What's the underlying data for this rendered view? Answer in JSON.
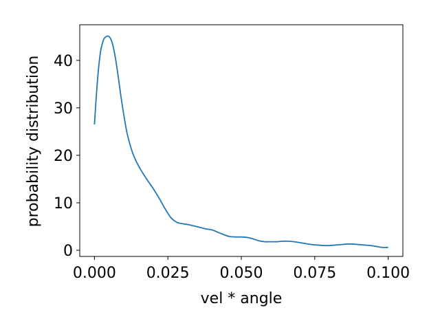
{
  "chart_data": {
    "type": "line",
    "title": "",
    "xlabel": "vel * angle",
    "ylabel": "probability distribution",
    "xlim": [
      -0.005,
      0.105
    ],
    "ylim": [
      -1.3,
      47.5
    ],
    "grid": false,
    "legend": "none",
    "line_color": "#1f77b4",
    "xticks": [
      0.0,
      0.025,
      0.05,
      0.075,
      0.1
    ],
    "xtick_labels": [
      "0.000",
      "0.025",
      "0.050",
      "0.075",
      "0.100"
    ],
    "yticks": [
      0,
      10,
      20,
      30,
      40
    ],
    "ytick_labels": [
      "0",
      "10",
      "20",
      "30",
      "40"
    ],
    "series": [
      {
        "x": [
          0.0,
          0.001,
          0.002,
          0.003,
          0.004,
          0.005,
          0.006,
          0.007,
          0.008,
          0.009,
          0.01,
          0.011,
          0.012,
          0.013,
          0.014,
          0.015,
          0.016,
          0.018,
          0.02,
          0.022,
          0.024,
          0.026,
          0.028,
          0.03,
          0.032,
          0.034,
          0.036,
          0.038,
          0.04,
          0.042,
          0.044,
          0.046,
          0.048,
          0.05,
          0.052,
          0.054,
          0.056,
          0.058,
          0.06,
          0.062,
          0.064,
          0.066,
          0.068,
          0.07,
          0.072,
          0.074,
          0.076,
          0.078,
          0.08,
          0.082,
          0.084,
          0.086,
          0.088,
          0.09,
          0.092,
          0.094,
          0.096,
          0.098,
          0.1
        ],
        "y": [
          26.5,
          35.5,
          41.5,
          44.2,
          45.0,
          45.0,
          43.8,
          41.0,
          37.0,
          32.5,
          28.5,
          25.0,
          22.5,
          20.5,
          19.0,
          17.8,
          16.7,
          14.8,
          13.0,
          11.0,
          8.8,
          6.9,
          5.9,
          5.6,
          5.4,
          5.1,
          4.8,
          4.5,
          4.3,
          3.8,
          3.3,
          2.9,
          2.8,
          2.8,
          2.7,
          2.4,
          2.0,
          1.8,
          1.8,
          1.8,
          1.9,
          1.9,
          1.8,
          1.6,
          1.4,
          1.2,
          1.1,
          1.0,
          1.0,
          1.1,
          1.2,
          1.3,
          1.3,
          1.2,
          1.1,
          1.0,
          0.8,
          0.6,
          0.6
        ]
      }
    ]
  }
}
